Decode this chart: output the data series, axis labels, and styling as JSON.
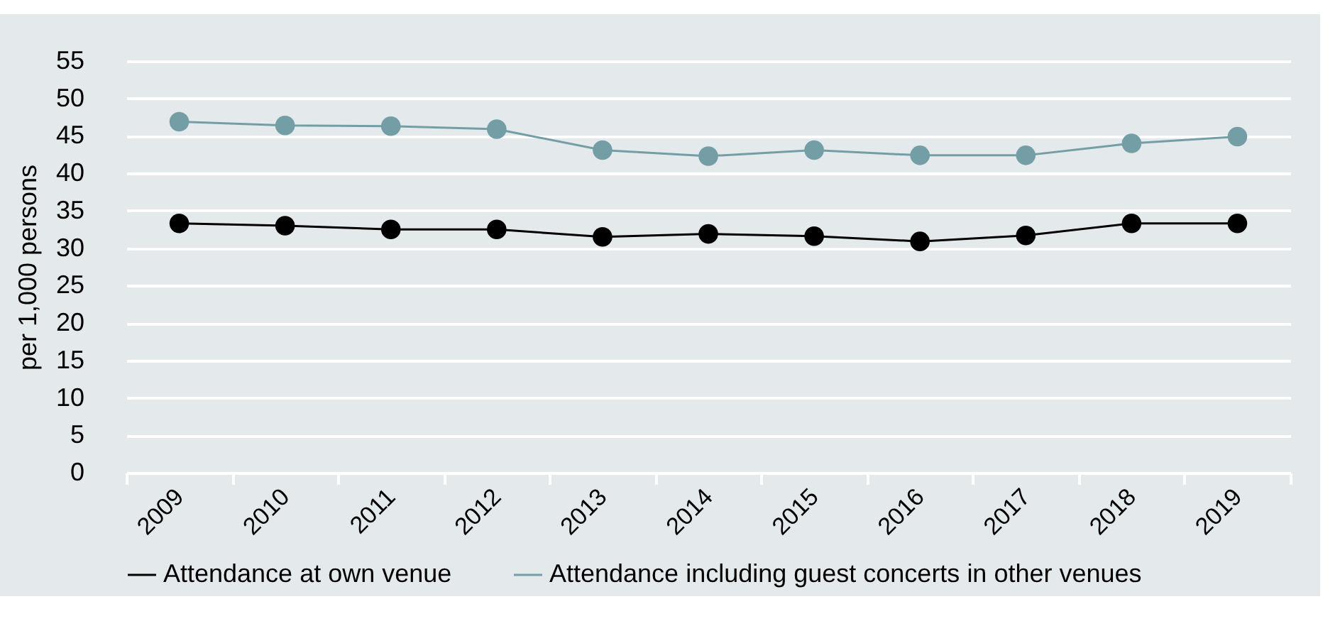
{
  "chart_data": {
    "type": "line",
    "ylabel": "per 1,000 persons",
    "categories": [
      "2009",
      "2010",
      "2011",
      "2012",
      "2013",
      "2014",
      "2015",
      "2016",
      "2017",
      "2018",
      "2019"
    ],
    "series": [
      {
        "name": "Attendance at own venue",
        "color": "#000000",
        "values": [
          33.3,
          33.0,
          32.5,
          32.5,
          31.5,
          31.9,
          31.6,
          30.9,
          31.7,
          33.3,
          33.3
        ]
      },
      {
        "name": "Attendance including guest concerts in other venues",
        "color": "#749ea6",
        "values": [
          46.9,
          46.4,
          46.3,
          45.9,
          43.1,
          42.3,
          43.1,
          42.4,
          42.4,
          44.0,
          44.9
        ]
      }
    ],
    "ylim": [
      0,
      55
    ],
    "yticks": [
      0,
      5,
      10,
      15,
      20,
      25,
      30,
      35,
      40,
      45,
      50,
      55
    ],
    "grid": "y",
    "legend": "bottom",
    "marker": "circle",
    "line_style": "solid"
  }
}
